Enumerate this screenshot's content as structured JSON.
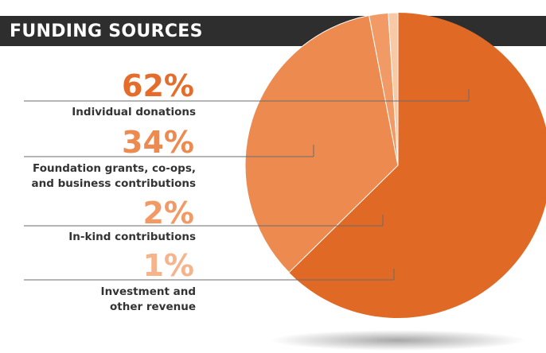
{
  "header": {
    "title": "FUNDING SOURCES"
  },
  "colors": {
    "title_bar": "#2e2e2e",
    "slice_colors": [
      "#e06a25",
      "#ec8a4f",
      "#f19a66",
      "#f8c9a6"
    ],
    "label_colors": [
      "#e56c2a",
      "#ec8a4f",
      "#f19a66",
      "#f5b48b"
    ]
  },
  "chart_data": {
    "type": "pie",
    "title": "FUNDING SOURCES",
    "slices": [
      {
        "value_label": "62%",
        "value": 62,
        "label": "Individual donations"
      },
      {
        "value_label": "34%",
        "value": 34,
        "label": "Foundation grants, co-ops,\nand business contributions"
      },
      {
        "value_label": "2%",
        "value": 2,
        "label": "In-kind contributions"
      },
      {
        "value_label": "1%",
        "value": 1,
        "label": "Investment and\nother revenue"
      }
    ]
  }
}
